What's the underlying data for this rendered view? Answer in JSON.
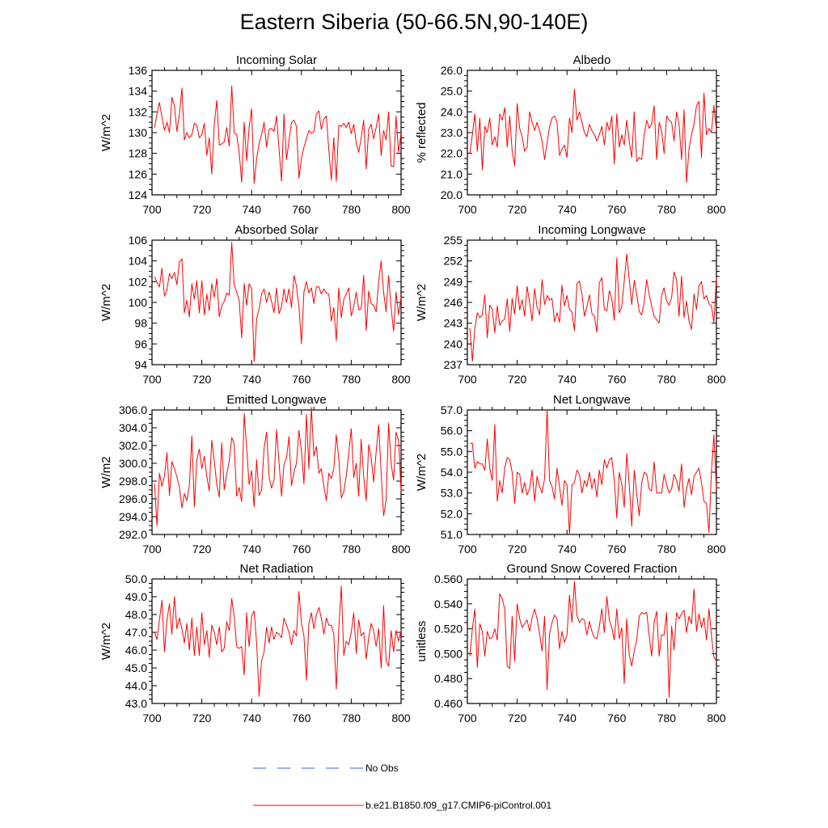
{
  "title": "Eastern Siberia (50-66.5N,90-140E)",
  "line_color": "#ff0000",
  "obs_color": "#4a5fd0",
  "legend": [
    {
      "label": "No Obs",
      "style": "dashed",
      "color": "#4a5fd0"
    },
    {
      "label": "b.e21.B1850.f09_g17.CMIP6-piControl.001",
      "style": "solid",
      "color": "#ff0000"
    }
  ],
  "chart_data": [
    {
      "type": "line",
      "title": "Incoming Solar",
      "ylabel": "W/m^2",
      "xlim": [
        700,
        800
      ],
      "ylim": [
        124,
        136
      ],
      "yticks": [
        "124",
        "126",
        "128",
        "130",
        "132",
        "134",
        "136"
      ],
      "xticks": [
        "700",
        "720",
        "740",
        "760",
        "780",
        "800"
      ],
      "x_start": 701,
      "series": [
        {
          "values": [
            130.5,
            131.8,
            132.9,
            131.5,
            130.2,
            131.0,
            130.0,
            133.4,
            132.6,
            130.1,
            131.8,
            134.3,
            129.3,
            130.0,
            129.5,
            129.8,
            130.9,
            130.7,
            129.5,
            129.8,
            130.9,
            127.8,
            129.5,
            126.0,
            130.8,
            133.1,
            128.8,
            128.9,
            129.1,
            130.5,
            128.7,
            134.5,
            130.0,
            129.8,
            128.1,
            125.2,
            131.0,
            127.3,
            130.5,
            132.3,
            125.1,
            127.5,
            128.9,
            129.8,
            131.0,
            128.6,
            130.3,
            130.4,
            130.1,
            131.6,
            128.4,
            125.3,
            131.8,
            127.4,
            129.2,
            131.0,
            131.2,
            130.6,
            125.6,
            127.5,
            128.6,
            129.4,
            130.2,
            129.9,
            130.1,
            131.8,
            132.1,
            130.3,
            131.3,
            131.6,
            128.3,
            125.4,
            129.5,
            125.3,
            130.7,
            130.6,
            130.9,
            130.5,
            131.0,
            129.9,
            130.8,
            129.0,
            128.1,
            129.5,
            131.2,
            126.5,
            130.3,
            130.8,
            129.4,
            130.5,
            131.8,
            127.8,
            130.2,
            129.3,
            132.0,
            126.8,
            126.7,
            131.6,
            128.1,
            130.0
          ]
        }
      ]
    },
    {
      "type": "line",
      "title": "Albedo",
      "ylabel": "% reflected",
      "xlim": [
        700,
        800
      ],
      "ylim": [
        20,
        26
      ],
      "yticks": [
        "20.0",
        "21.0",
        "22.0",
        "23.0",
        "24.0",
        "25.0",
        "26.0"
      ],
      "xticks": [
        "700",
        "720",
        "740",
        "760",
        "780",
        "800"
      ],
      "x_start": 701,
      "series": [
        {
          "values": [
            22.0,
            22.9,
            23.9,
            22.1,
            23.7,
            21.2,
            23.3,
            23.0,
            23.7,
            22.4,
            22.8,
            22.3,
            23.9,
            23.6,
            24.2,
            22.3,
            23.8,
            22.1,
            21.4,
            24.4,
            23.2,
            22.8,
            22.1,
            22.3,
            24.0,
            23.5,
            23.1,
            23.5,
            23.1,
            22.6,
            21.7,
            22.5,
            23.3,
            23.7,
            23.8,
            23.5,
            21.9,
            22.2,
            22.4,
            21.8,
            23.7,
            23.0,
            25.1,
            23.6,
            24.0,
            23.5,
            23.0,
            22.8,
            23.4,
            23.1,
            22.9,
            22.6,
            22.9,
            23.3,
            22.4,
            23.5,
            23.1,
            23.8,
            21.5,
            23.9,
            22.3,
            22.9,
            22.4,
            23.6,
            22.6,
            21.8,
            24.0,
            21.6,
            21.8,
            21.7,
            22.9,
            23.6,
            23.2,
            23.4,
            24.3,
            21.7,
            23.5,
            23.1,
            22.0,
            23.8,
            23.6,
            23.5,
            22.6,
            24.0,
            23.4,
            21.7,
            24.1,
            20.6,
            22.2,
            22.9,
            23.4,
            24.3,
            24.5,
            21.8,
            24.9,
            22.9,
            23.2,
            23.0,
            24.3,
            23.1
          ]
        }
      ]
    },
    {
      "type": "line",
      "title": "Absorbed Solar",
      "ylabel": "W/m^2",
      "xlim": [
        700,
        800
      ],
      "ylim": [
        94,
        106
      ],
      "yticks": [
        "94",
        "96",
        "98",
        "100",
        "102",
        "104",
        "106"
      ],
      "xticks": [
        "700",
        "720",
        "740",
        "760",
        "780",
        "800"
      ],
      "x_start": 701,
      "series": [
        {
          "values": [
            102.5,
            101.9,
            101.5,
            103.3,
            100.6,
            101.2,
            102.8,
            102.3,
            102.9,
            101.7,
            103.9,
            104.2,
            99.0,
            100.2,
            98.6,
            101.8,
            100.3,
            102.1,
            99.0,
            102.1,
            98.8,
            100.8,
            99.2,
            101.8,
            100.5,
            102.3,
            98.6,
            99.7,
            100.1,
            100.9,
            100.7,
            105.8,
            101.7,
            101.0,
            100.2,
            96.6,
            101.8,
            99.7,
            101.8,
            101.3,
            94.3,
            98.4,
            99.4,
            100.8,
            101.3,
            100.0,
            101.0,
            100.1,
            99.0,
            101.4,
            98.9,
            99.6,
            101.3,
            100.0,
            101.3,
            99.5,
            102.6,
            101.6,
            99.6,
            96.0,
            101.0,
            102.0,
            100.9,
            101.4,
            99.9,
            101.5,
            101.5,
            100.8,
            101.3,
            100.9,
            100.8,
            98.2,
            99.5,
            96.3,
            101.4,
            98.5,
            100.3,
            100.8,
            101.4,
            98.7,
            99.6,
            101.0,
            99.3,
            99.4,
            102.6,
            97.3,
            101.1,
            99.9,
            99.7,
            99.1,
            102.0,
            104.0,
            101.0,
            99.1,
            102.6,
            99.5,
            97.2,
            101.0,
            98.8,
            100.5
          ]
        }
      ]
    },
    {
      "type": "line",
      "title": "Incoming Longwave",
      "ylabel": "W/m^2",
      "xlim": [
        700,
        800
      ],
      "ylim": [
        237,
        255
      ],
      "yticks": [
        "237",
        "240",
        "243",
        "246",
        "249",
        "252",
        "255"
      ],
      "xticks": [
        "700",
        "720",
        "740",
        "760",
        "780",
        "800"
      ],
      "x_start": 701,
      "series": [
        {
          "values": [
            242.3,
            237.5,
            242.2,
            244.5,
            243.8,
            244.2,
            247.1,
            240.9,
            245.6,
            245.0,
            241.6,
            245.5,
            242.7,
            243.3,
            243.6,
            246.5,
            241.8,
            246.6,
            244.3,
            248.4,
            244.9,
            246.4,
            244.0,
            248.3,
            246.0,
            243.3,
            248.0,
            245.3,
            244.2,
            249.3,
            245.7,
            247.0,
            246.3,
            246.6,
            243.2,
            244.5,
            243.1,
            248.5,
            245.5,
            247.0,
            245.0,
            244.6,
            241.9,
            248.7,
            249.1,
            247.2,
            244.0,
            245.4,
            247.1,
            244.4,
            244.0,
            241.7,
            248.8,
            249.6,
            245.0,
            244.8,
            247.7,
            246.6,
            243.4,
            252.4,
            244.5,
            245.4,
            249.1,
            253.0,
            249.3,
            245.7,
            249.2,
            247.2,
            244.7,
            244.2,
            246.0,
            249.3,
            247.2,
            245.5,
            244.0,
            243.5,
            243.0,
            247.0,
            248.1,
            246.2,
            245.6,
            246.7,
            250.4,
            249.3,
            244.0,
            249.8,
            243.8,
            246.2,
            243.3,
            242.1,
            247.2,
            245.0,
            248.4,
            249.0,
            246.5,
            247.0,
            245.8,
            245.5,
            243.1,
            249.6
          ]
        }
      ]
    },
    {
      "type": "line",
      "title": "Emitted Longwave",
      "ylabel": "W/m2",
      "xlim": [
        700,
        800
      ],
      "ylim": [
        292,
        306
      ],
      "yticks": [
        "292.0",
        "294.0",
        "296.0",
        "298.0",
        "300.0",
        "302.0",
        "304.0",
        "306.0"
      ],
      "xticks": [
        "700",
        "720",
        "740",
        "760",
        "780",
        "800"
      ],
      "x_start": 701,
      "series": [
        {
          "values": [
            297.7,
            293.0,
            298.9,
            297.4,
            298.6,
            301.2,
            296.4,
            300.2,
            299.4,
            298.5,
            297.3,
            295.0,
            296.6,
            295.8,
            297.5,
            303.1,
            295.1,
            300.4,
            301.6,
            299.4,
            300.8,
            298.5,
            296.9,
            302.6,
            300.3,
            297.6,
            296.2,
            302.3,
            297.0,
            298.8,
            300.2,
            302.9,
            302.2,
            296.3,
            297.3,
            295.7,
            305.6,
            301.8,
            297.6,
            299.2,
            295.1,
            300.4,
            296.4,
            297.0,
            301.7,
            303.5,
            298.5,
            297.2,
            298.1,
            303.8,
            300.1,
            296.3,
            299.9,
            300.6,
            303.0,
            297.5,
            299.0,
            300.0,
            303.7,
            301.4,
            297.7,
            305.5,
            299.4,
            306.3,
            300.8,
            301.9,
            298.9,
            299.4,
            297.4,
            295.8,
            298.9,
            298.3,
            299.4,
            303.2,
            300.5,
            296.1,
            296.8,
            298.6,
            301.1,
            303.9,
            298.4,
            300.0,
            296.3,
            302.7,
            298.4,
            295.8,
            302.1,
            300.7,
            297.9,
            301.3,
            304.3,
            298.9,
            294.1,
            295.8,
            304.5,
            300.0,
            298.1,
            303.5,
            302.6,
            296.9
          ]
        }
      ]
    },
    {
      "type": "line",
      "title": "Net Longwave",
      "ylabel": "W/m^2",
      "xlim": [
        700,
        800
      ],
      "ylim": [
        51,
        57
      ],
      "yticks": [
        "51.0",
        "52.0",
        "53.0",
        "54.0",
        "55.0",
        "56.0",
        "57.0"
      ],
      "xticks": [
        "700",
        "720",
        "740",
        "760",
        "780",
        "800"
      ],
      "x_start": 701,
      "series": [
        {
          "values": [
            55.4,
            55.4,
            54.2,
            54.5,
            54.4,
            54.4,
            54.1,
            55.6,
            54.2,
            53.6,
            56.3,
            52.6,
            53.6,
            53.0,
            54.2,
            54.7,
            54.6,
            54.0,
            52.5,
            54.0,
            53.9,
            53.0,
            53.5,
            52.9,
            53.2,
            54.1,
            52.6,
            53.8,
            53.3,
            53.0,
            53.7,
            57.0,
            53.6,
            53.3,
            52.7,
            54.2,
            53.3,
            52.4,
            53.6,
            53.4,
            51.0,
            53.4,
            53.5,
            54.1,
            53.9,
            53.0,
            53.6,
            53.3,
            54.0,
            53.2,
            53.7,
            52.8,
            54.1,
            53.4,
            54.6,
            54.2,
            54.6,
            54.7,
            53.6,
            51.8,
            54.0,
            53.4,
            52.3,
            54.9,
            53.4,
            51.4,
            54.1,
            53.0,
            51.9,
            53.5,
            54.0,
            53.9,
            53.2,
            53.1,
            54.5,
            53.0,
            53.0,
            53.0,
            53.9,
            53.4,
            53.0,
            53.2,
            53.9,
            53.6,
            53.1,
            54.4,
            52.3,
            53.2,
            53.7,
            52.9,
            53.8,
            54.0,
            54.2,
            53.5,
            52.6,
            52.5,
            51.1,
            54.0,
            55.8,
            53.2
          ]
        }
      ]
    },
    {
      "type": "line",
      "title": "Net Radiation",
      "ylabel": "W/m^2",
      "xlim": [
        700,
        800
      ],
      "ylim": [
        43,
        50
      ],
      "yticks": [
        "43.0",
        "44.0",
        "45.0",
        "46.0",
        "47.0",
        "48.0",
        "49.0",
        "50.0"
      ],
      "xticks": [
        "700",
        "720",
        "740",
        "760",
        "780",
        "800"
      ],
      "x_start": 701,
      "series": [
        {
          "values": [
            47.0,
            46.6,
            47.7,
            48.8,
            45.9,
            47.7,
            48.6,
            46.9,
            49.0,
            47.2,
            47.8,
            47.2,
            46.4,
            47.5,
            46.0,
            47.8,
            45.7,
            47.3,
            45.7,
            48.1,
            46.3,
            47.1,
            45.6,
            47.4,
            47.0,
            46.3,
            47.3,
            45.9,
            46.1,
            47.6,
            47.1,
            48.9,
            47.9,
            46.2,
            46.1,
            46.2,
            44.6,
            48.1,
            46.2,
            47.9,
            48.2,
            46.4,
            43.4,
            45.4,
            45.9,
            47.3,
            46.4,
            47.3,
            46.6,
            47.0,
            46.9,
            46.7,
            47.8,
            47.4,
            47.0,
            46.3,
            47.1,
            46.8,
            49.3,
            47.5,
            46.8,
            44.3,
            47.5,
            48.1,
            47.2,
            48.0,
            48.4,
            47.8,
            46.9,
            47.8,
            47.4,
            47.4,
            46.9,
            43.8,
            47.2,
            49.6,
            45.7,
            46.5,
            46.3,
            47.0,
            48.1,
            45.8,
            47.7,
            46.8,
            47.0,
            45.5,
            46.7,
            47.5,
            47.1,
            46.2,
            47.2,
            45.0,
            48.5,
            45.4,
            45.1,
            47.1,
            45.9,
            47.1,
            46.5,
            47.1
          ]
        }
      ]
    },
    {
      "type": "line",
      "title": "Ground Snow Covered Fraction",
      "ylabel": "unitless",
      "xlim": [
        700,
        800
      ],
      "ylim": [
        0.46,
        0.56
      ],
      "yticks": [
        "0.460",
        "0.480",
        "0.500",
        "0.520",
        "0.540",
        "0.560"
      ],
      "xticks": [
        "700",
        "720",
        "740",
        "760",
        "780",
        "800"
      ],
      "x_start": 701,
      "series": [
        {
          "values": [
            0.498,
            0.52,
            0.536,
            0.489,
            0.524,
            0.518,
            0.498,
            0.518,
            0.512,
            0.513,
            0.52,
            0.511,
            0.548,
            0.544,
            0.536,
            0.49,
            0.488,
            0.53,
            0.494,
            0.54,
            0.528,
            0.521,
            0.524,
            0.527,
            0.518,
            0.529,
            0.536,
            0.528,
            0.516,
            0.502,
            0.53,
            0.471,
            0.516,
            0.525,
            0.531,
            0.528,
            0.504,
            0.518,
            0.509,
            0.515,
            0.547,
            0.525,
            0.558,
            0.531,
            0.525,
            0.528,
            0.527,
            0.515,
            0.526,
            0.518,
            0.513,
            0.512,
            0.522,
            0.536,
            0.517,
            0.546,
            0.527,
            0.521,
            0.511,
            0.536,
            0.512,
            0.521,
            0.476,
            0.528,
            0.499,
            0.49,
            0.502,
            0.511,
            0.53,
            0.533,
            0.532,
            0.533,
            0.515,
            0.498,
            0.525,
            0.534,
            0.498,
            0.515,
            0.515,
            0.533,
            0.465,
            0.522,
            0.503,
            0.533,
            0.528,
            0.532,
            0.535,
            0.517,
            0.53,
            0.524,
            0.552,
            0.518,
            0.532,
            0.521,
            0.529,
            0.511,
            0.536,
            0.515,
            0.497,
            0.494
          ]
        }
      ]
    }
  ]
}
